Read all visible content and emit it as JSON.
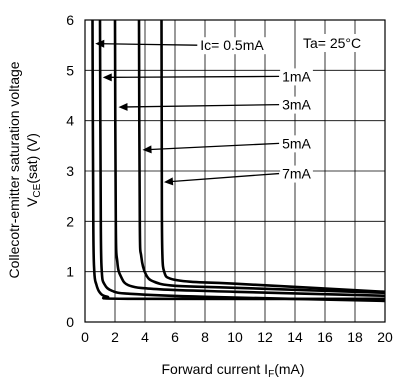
{
  "chart_data": {
    "type": "line",
    "title": "",
    "xlabel": "Forward current I",
    "xlabel_sub": "F",
    "xlabel_unit": "(mA)",
    "ylabel_line1": "Collecotr-emitter saturation voltage",
    "ylabel_line2_pre": "V",
    "ylabel_line2_sub": "CE",
    "ylabel_line2_post": "(sat) (V)",
    "xlim": [
      0,
      20
    ],
    "ylim": [
      0,
      6
    ],
    "xticks": [
      0,
      2,
      4,
      6,
      8,
      10,
      12,
      14,
      16,
      18,
      20
    ],
    "yticks": [
      0,
      1,
      2,
      3,
      4,
      5,
      6
    ],
    "grid": true,
    "condition": "Ta= 25°C",
    "series": [
      {
        "name": "Ic= 0.5mA",
        "points": [
          [
            0.5,
            6.0
          ],
          [
            0.55,
            2.0
          ],
          [
            0.62,
            1.0
          ],
          [
            0.75,
            0.75
          ],
          [
            1.0,
            0.58
          ],
          [
            1.5,
            0.5
          ],
          [
            3,
            0.46
          ],
          [
            20,
            0.46
          ]
        ]
      },
      {
        "name": "1mA",
        "points": [
          [
            1.0,
            6.0
          ],
          [
            1.05,
            2.0
          ],
          [
            1.12,
            1.0
          ],
          [
            1.3,
            0.75
          ],
          [
            1.8,
            0.62
          ],
          [
            3,
            0.56
          ],
          [
            8,
            0.5
          ],
          [
            20,
            0.42
          ]
        ]
      },
      {
        "name": "3mA",
        "points": [
          [
            2.0,
            6.0
          ],
          [
            2.05,
            2.0
          ],
          [
            2.15,
            1.2
          ],
          [
            2.4,
            0.9
          ],
          [
            3,
            0.72
          ],
          [
            5,
            0.65
          ],
          [
            10,
            0.6
          ],
          [
            20,
            0.52
          ]
        ]
      },
      {
        "name": "5mA",
        "points": [
          [
            3.6,
            6.0
          ],
          [
            3.65,
            2.0
          ],
          [
            3.75,
            1.3
          ],
          [
            4.05,
            0.95
          ],
          [
            4.6,
            0.8
          ],
          [
            6,
            0.72
          ],
          [
            10,
            0.68
          ],
          [
            20,
            0.58
          ]
        ]
      },
      {
        "name": "7mA",
        "points": [
          [
            5.1,
            6.0
          ],
          [
            5.12,
            3.0
          ],
          [
            5.15,
            1.4
          ],
          [
            5.3,
            0.98
          ],
          [
            5.7,
            0.86
          ],
          [
            7,
            0.8
          ],
          [
            10,
            0.76
          ],
          [
            20,
            0.6
          ]
        ]
      }
    ],
    "annotations": [
      {
        "text": "Ic= 0.5mA",
        "x": 9.8,
        "y": 5.4,
        "arrow_to": [
          0.55,
          5.53
        ]
      },
      {
        "text": "1mA",
        "x": 14.1,
        "y": 4.78,
        "arrow_to": [
          1.05,
          4.86
        ]
      },
      {
        "text": "3mA",
        "x": 14.1,
        "y": 4.22,
        "arrow_to": [
          2.1,
          4.27
        ]
      },
      {
        "text": "5mA",
        "x": 14.1,
        "y": 3.45,
        "arrow_to": [
          3.7,
          3.42
        ]
      },
      {
        "text": "7mA",
        "x": 14.1,
        "y": 2.85,
        "arrow_to": [
          5.13,
          2.78
        ]
      }
    ]
  }
}
